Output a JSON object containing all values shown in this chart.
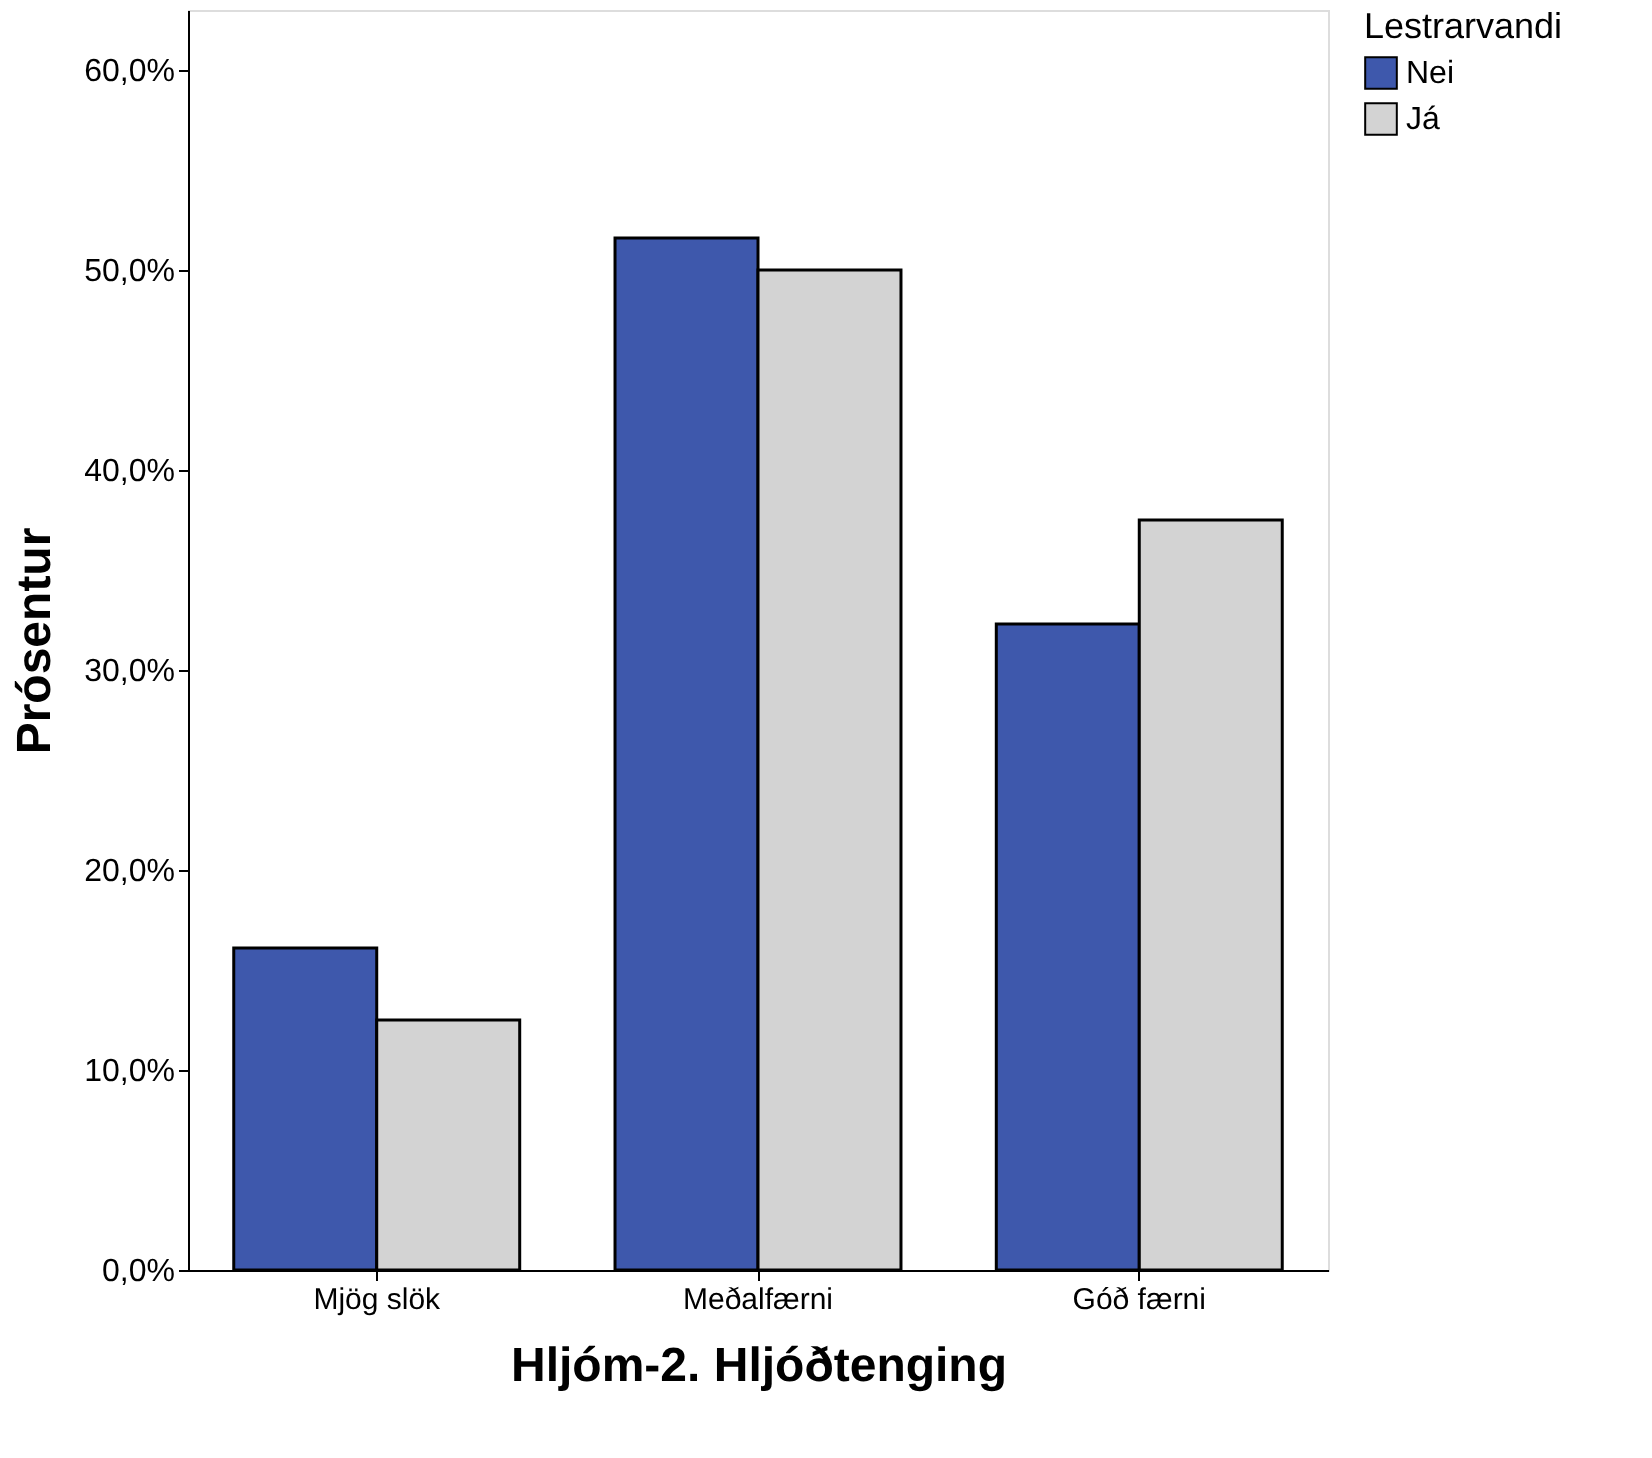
{
  "chart_data": {
    "type": "bar",
    "xlabel": "Hljóm-2. Hljóðtenging",
    "ylabel": "Prósentur",
    "legend_title": "Lestrarvandi",
    "categories": [
      "Mjög slök",
      "Meðalfærni",
      "Góð færni"
    ],
    "series": [
      {
        "name": "Nei",
        "color": "#3e58ac",
        "values": [
          16.1,
          51.6,
          32.3
        ]
      },
      {
        "name": "Já",
        "color": "#d3d3d3",
        "values": [
          12.5,
          50.0,
          37.5
        ]
      }
    ],
    "ylim": [
      0,
      63
    ],
    "yticks": [
      {
        "value": 0,
        "label": "0,0%"
      },
      {
        "value": 10,
        "label": "10,0%"
      },
      {
        "value": 20,
        "label": "20,0%"
      },
      {
        "value": 30,
        "label": "30,0%"
      },
      {
        "value": 40,
        "label": "40,0%"
      },
      {
        "value": 50,
        "label": "50,0%"
      },
      {
        "value": 60,
        "label": "60,0%"
      }
    ],
    "grid": false,
    "legend": "top right"
  }
}
